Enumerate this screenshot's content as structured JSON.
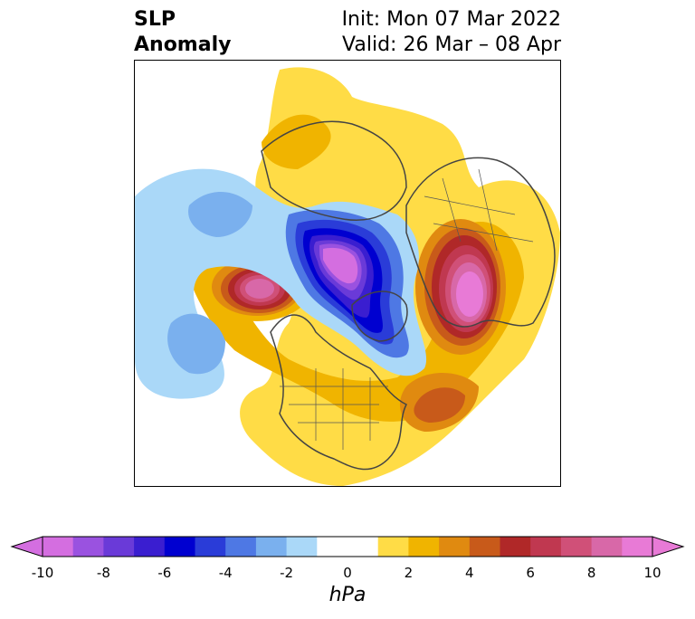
{
  "title": {
    "left_line1": "SLP",
    "left_line2": "Anomaly",
    "right_line1": "Init: Mon 07 Mar 2022",
    "right_line2": "Valid: 26 Mar – 08 Apr"
  },
  "colorbar": {
    "unit": "hPa",
    "ticks": [
      "-10",
      "-8",
      "-6",
      "-4",
      "-2",
      "0",
      "2",
      "4",
      "6",
      "8",
      "10"
    ],
    "under_color": "#d46ee0",
    "over_color": "#e87ad6",
    "colors": [
      "#d46ee0",
      "#9a52e0",
      "#6a3ad8",
      "#3a1ed0",
      "#0000d0",
      "#2a3cd8",
      "#4e78e4",
      "#7ab0ee",
      "#aad8f8",
      "#ffffff",
      "#ffffff",
      "#ffdc46",
      "#f0b400",
      "#e08a10",
      "#c85a1a",
      "#b02828",
      "#c03850",
      "#d05078",
      "#d868a8",
      "#e87ad6"
    ]
  },
  "map": {
    "anomalies": [
      {
        "name": "low-arctic",
        "sign": "negative",
        "peak": -10
      },
      {
        "name": "high-west-europe",
        "sign": "positive",
        "peak": 10
      },
      {
        "name": "high-alaska",
        "sign": "positive",
        "peak": 9
      },
      {
        "name": "high-north-atlantic",
        "sign": "positive",
        "peak": 5
      },
      {
        "name": "low-north-pacific",
        "sign": "negative",
        "peak": -3
      }
    ]
  }
}
